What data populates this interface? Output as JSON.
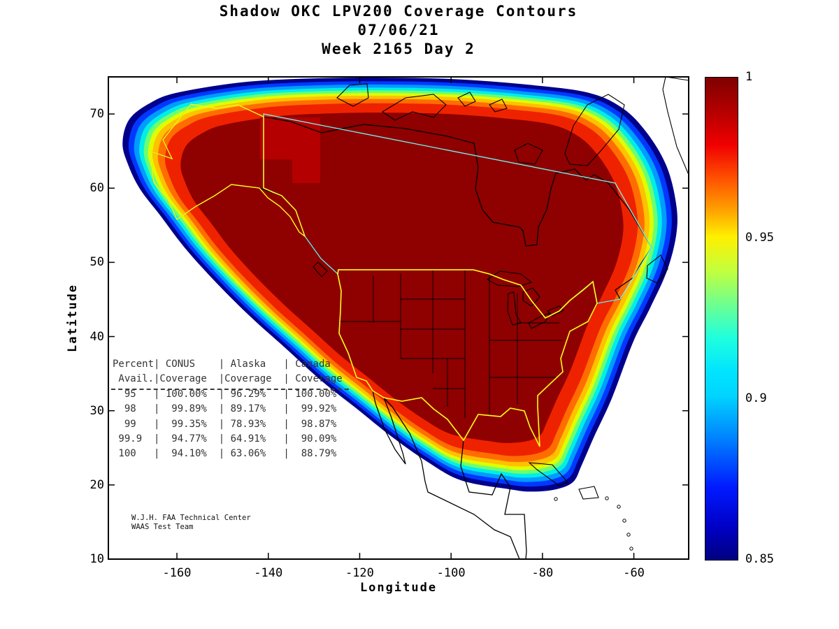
{
  "title": {
    "line1": "Shadow OKC LPV200 Coverage Contours",
    "line2": "07/06/21",
    "line3": "Week 2165 Day 2"
  },
  "axes": {
    "xlabel": "Longitude",
    "ylabel": "Latitude"
  },
  "table": {
    "lines": [
      "Percent| CONUS    | Alaska   | Canada",
      " Avail.|Coverage  |Coverage  | Coverage",
      "  95   | 100.00%  | 96.29%   | 100.00%",
      "  98   |  99.89%  | 89.17%   |  99.92%",
      "  99   |  99.35%  | 78.93%   |  98.87%",
      " 99.9  |  94.77%  | 64.91%   |  90.09%",
      " 100   |  94.10%  | 63.06%   |  88.79%"
    ]
  },
  "annotation": {
    "line1": "W.J.H. FAA Technical Center",
    "line2": "WAAS Test Team"
  },
  "chart_data": {
    "type": "filled-contour-map",
    "title": "Shadow OKC LPV200 Coverage Contours",
    "date": "07/06/21",
    "week_day": "Week 2165 Day 2",
    "xlabel": "Longitude",
    "ylabel": "Latitude",
    "xlim": [
      -175,
      -48
    ],
    "ylim": [
      10,
      75
    ],
    "x_ticks": [
      -160,
      -140,
      -120,
      -100,
      -80,
      -60
    ],
    "y_ticks": [
      10,
      20,
      30,
      40,
      50,
      60,
      70
    ],
    "colorbar": {
      "min": 0.85,
      "max": 1,
      "tick_values": [
        1,
        0.95,
        0.9,
        0.85
      ],
      "tick_labels": [
        "1",
        "0.95",
        "0.9",
        "0.85"
      ],
      "colormap": "jet",
      "position": "right"
    },
    "contours": {
      "band_min_values": [
        0.85,
        0.865,
        0.88,
        0.895,
        0.91,
        0.925,
        0.94,
        0.955,
        0.97,
        0.985
      ],
      "band_colors": [
        "#00008C",
        "#0038FF",
        "#009CFF",
        "#00EFE4",
        "#6CFF72",
        "#DFFF00",
        "#FFC100",
        "#FF6D00",
        "#EF2200",
        "#8F0000"
      ],
      "center": [
        -109,
        51.5
      ],
      "shrink_factors": [
        1.0,
        0.979,
        0.96,
        0.942,
        0.926,
        0.911,
        0.896,
        0.877,
        0.852,
        0.798
      ],
      "outer_boundary": [
        [
          -145.2,
          74.3
        ],
        [
          -129.9,
          74.8
        ],
        [
          -114.6,
          74.9
        ],
        [
          -99.3,
          74.7
        ],
        [
          -84.0,
          74.0
        ],
        [
          -70.2,
          72.9
        ],
        [
          -62.5,
          70.8
        ],
        [
          -57.2,
          67.5
        ],
        [
          -53.0,
          63.2
        ],
        [
          -50.9,
          58.5
        ],
        [
          -50.6,
          54.3
        ],
        [
          -52.6,
          49.1
        ],
        [
          -56.4,
          43.9
        ],
        [
          -60.2,
          39.2
        ],
        [
          -64.8,
          31.7
        ],
        [
          -68.7,
          26.5
        ],
        [
          -71.4,
          22.7
        ],
        [
          -73.3,
          20.4
        ],
        [
          -77.1,
          19.4
        ],
        [
          -82.4,
          19.1
        ],
        [
          -87.0,
          19.4
        ],
        [
          -97.7,
          20.6
        ],
        [
          -105.4,
          23.2
        ],
        [
          -113.0,
          26.5
        ],
        [
          -120.7,
          30.3
        ],
        [
          -128.3,
          34.0
        ],
        [
          -136.0,
          38.3
        ],
        [
          -143.6,
          42.5
        ],
        [
          -151.3,
          47.2
        ],
        [
          -158.2,
          51.9
        ],
        [
          -163.5,
          56.2
        ],
        [
          -168.1,
          59.9
        ],
        [
          -170.7,
          63.2
        ],
        [
          -171.9,
          66.1
        ],
        [
          -170.4,
          69.3
        ],
        [
          -165.8,
          71.5
        ],
        [
          -159.7,
          72.9
        ]
      ]
    },
    "coverage_table": {
      "columns": [
        "Percent Avail.",
        "CONUS Coverage",
        "Alaska Coverage",
        "Canada Coverage"
      ],
      "rows": [
        [
          "95",
          "100.00%",
          "96.29%",
          "100.00%"
        ],
        [
          "98",
          "99.89%",
          "89.17%",
          "99.92%"
        ],
        [
          "99",
          "99.35%",
          "78.93%",
          "98.87%"
        ],
        [
          "99.9",
          "94.77%",
          "64.91%",
          "90.09%"
        ],
        [
          "100",
          "94.10%",
          "63.06%",
          "88.79%"
        ]
      ]
    },
    "credit": [
      "W.J.H. FAA Technical Center",
      "WAAS Test Team"
    ]
  }
}
